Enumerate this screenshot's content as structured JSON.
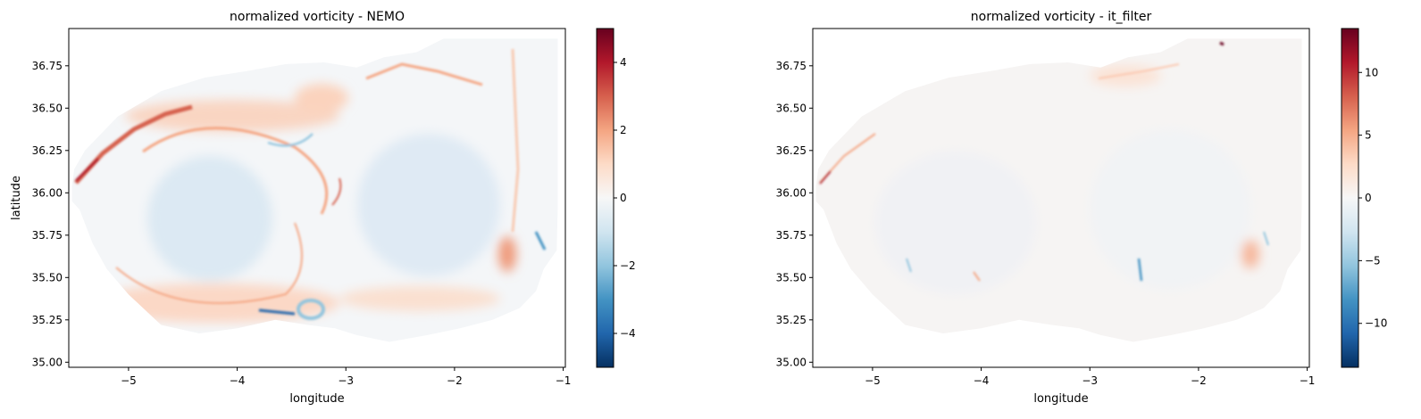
{
  "chart_data": [
    {
      "type": "heatmap",
      "title": "normalized vorticity - NEMO",
      "xlabel": "longitude",
      "ylabel": "latitude",
      "xlim": [
        -5.55,
        -0.98
      ],
      "ylim": [
        34.97,
        36.97
      ],
      "xticks": [
        -5,
        -4,
        -3,
        -2,
        -1
      ],
      "xtick_labels": [
        "−5",
        "−4",
        "−3",
        "−2",
        "−1"
      ],
      "yticks": [
        35.0,
        35.25,
        35.5,
        35.75,
        36.0,
        36.25,
        36.5,
        36.75
      ],
      "ytick_labels": [
        "35.00",
        "35.25",
        "35.50",
        "35.75",
        "36.00",
        "36.25",
        "36.50",
        "36.75"
      ],
      "colormap": "RdBu_r",
      "colorbar": {
        "vmin": -5,
        "vmax": 5,
        "ticks": [
          -4,
          -2,
          0,
          2,
          4
        ],
        "tick_labels": [
          "−4",
          "−2",
          "0",
          "2",
          "4"
        ]
      }
    },
    {
      "type": "heatmap",
      "title": "normalized vorticity - it_filter",
      "xlabel": "longitude",
      "ylabel": "",
      "xlim": [
        -5.55,
        -0.98
      ],
      "ylim": [
        34.97,
        36.97
      ],
      "xticks": [
        -5,
        -4,
        -3,
        -2,
        -1
      ],
      "xtick_labels": [
        "−5",
        "−4",
        "−3",
        "−2",
        "−1"
      ],
      "yticks": [
        35.0,
        35.25,
        35.5,
        35.75,
        36.0,
        36.25,
        36.5,
        36.75
      ],
      "ytick_labels": [
        "35.00",
        "35.25",
        "35.50",
        "35.75",
        "36.00",
        "36.25",
        "36.50",
        "36.75"
      ],
      "colormap": "RdBu_r",
      "colorbar": {
        "vmin": -13.5,
        "vmax": 13.5,
        "ticks": [
          -10,
          -5,
          0,
          5,
          10
        ],
        "tick_labels": [
          "−10",
          "−5",
          "0",
          "5",
          "10"
        ]
      }
    }
  ]
}
